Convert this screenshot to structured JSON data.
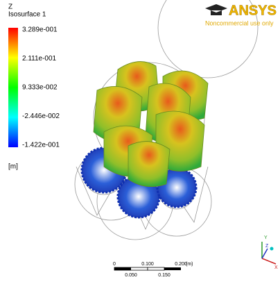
{
  "legend": {
    "title": "Z",
    "variable": "Isosurface 1",
    "labels": [
      "3.289e-001",
      "2.111e-001",
      "9.333e-002",
      "-2.446e-002",
      "-1.422e-001"
    ],
    "unit": "[m]"
  },
  "logo": {
    "name": "ANSYS",
    "note": "Noncommercial use only"
  },
  "scale_bar": {
    "top_labels": [
      "0",
      "0.100",
      "0.200"
    ],
    "unit": "(m)",
    "bottom_labels": [
      "0.050",
      "0.150"
    ]
  },
  "triad": {
    "labels": [
      "Y",
      "Z",
      "X"
    ]
  }
}
